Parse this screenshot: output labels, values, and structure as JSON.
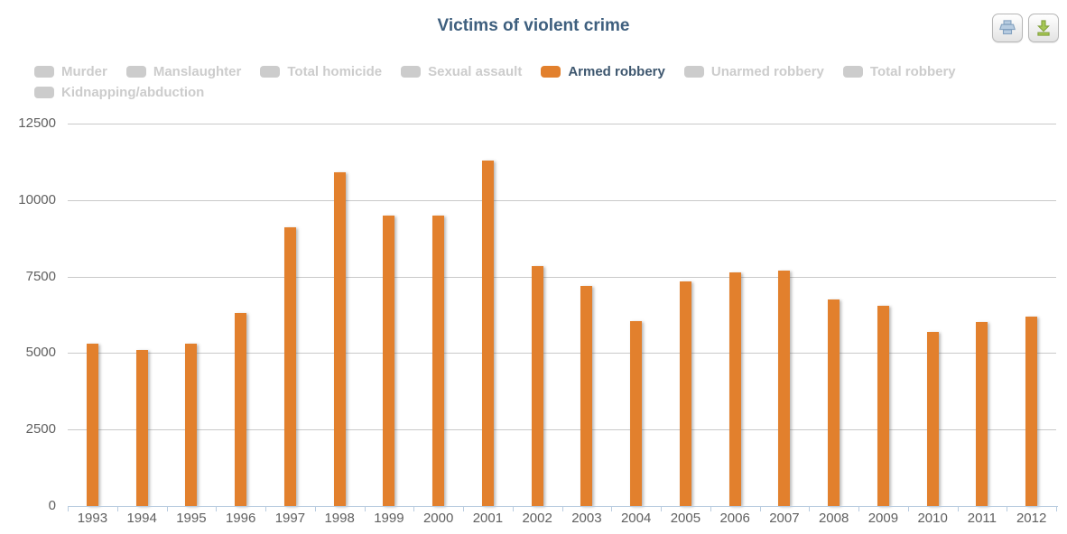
{
  "title": "Victims of violent crime",
  "toolbar": {
    "buttons": [
      {
        "name": "print",
        "icon": "printer-icon"
      },
      {
        "name": "download",
        "icon": "download-icon"
      }
    ]
  },
  "legend": {
    "active_color": "#e2802d",
    "inactive_color": "#cccccc",
    "active_text_color": "#3e576f",
    "items": [
      {
        "label": "Murder",
        "active": false
      },
      {
        "label": "Manslaughter",
        "active": false
      },
      {
        "label": "Total homicide",
        "active": false
      },
      {
        "label": "Sexual assault",
        "active": false
      },
      {
        "label": "Armed robbery",
        "active": true
      },
      {
        "label": "Unarmed robbery",
        "active": false
      },
      {
        "label": "Total robbery",
        "active": false
      },
      {
        "label": "Kidnapping/abduction",
        "active": false
      }
    ]
  },
  "chart_data": {
    "type": "bar",
    "title": "Victims of violent crime",
    "categories": [
      "1993",
      "1994",
      "1995",
      "1996",
      "1997",
      "1998",
      "1999",
      "2000",
      "2001",
      "2002",
      "2003",
      "2004",
      "2005",
      "2006",
      "2007",
      "2008",
      "2009",
      "2010",
      "2011",
      "2012"
    ],
    "series": [
      {
        "name": "Armed robbery",
        "color": "#e2802d",
        "values": [
          5300,
          5100,
          5300,
          6300,
          9100,
          10900,
          9500,
          9500,
          11300,
          7850,
          7200,
          6050,
          7350,
          7650,
          7700,
          6750,
          6550,
          5700,
          6000,
          6200
        ]
      }
    ],
    "xlabel": "",
    "ylabel": "",
    "ylim": [
      0,
      12500
    ],
    "yticks": [
      0,
      2500,
      5000,
      7500,
      10000,
      12500
    ],
    "grid": true,
    "legend_position": "top-left"
  }
}
